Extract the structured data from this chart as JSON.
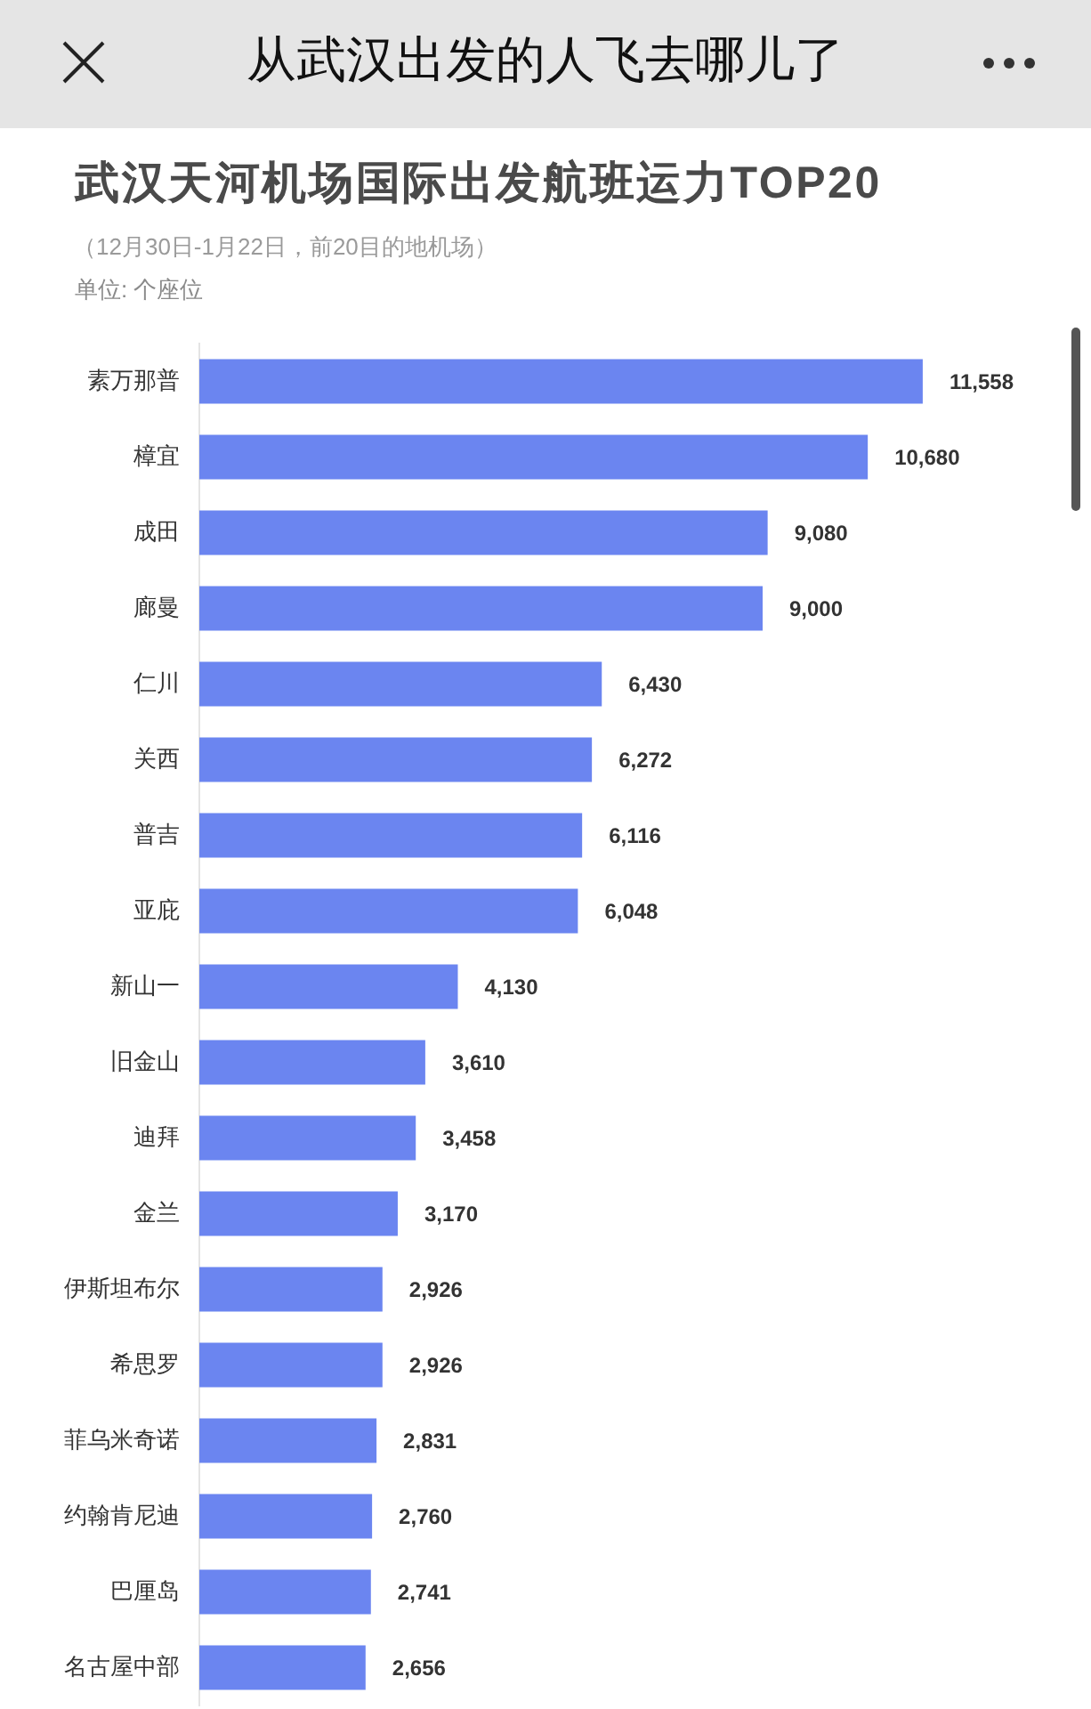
{
  "chart_data": {
    "type": "bar",
    "orientation": "horizontal",
    "title": "武汉天河机场国际出发航班运力TOP20",
    "subtitle": "（12月30日-1月22日，前20目的地机场）",
    "annotations": [
      "从武汉出发的人飞去哪儿了",
      "单位: 个座位"
    ],
    "categories": [
      "素万那普",
      "樟宜",
      "成田",
      "廊曼",
      "仁川",
      "关西",
      "普吉",
      "亚庇",
      "新山一",
      "旧金山",
      "迪拜",
      "金兰",
      "伊斯坦布尔",
      "希思罗",
      "菲乌米奇诺",
      "约翰肯尼迪",
      "巴厘岛",
      "名古屋中部"
    ],
    "values": [
      11558,
      10680,
      9080,
      9000,
      6430,
      6272,
      6116,
      6048,
      4130,
      3610,
      3458,
      3170,
      2926,
      2926,
      2831,
      2760,
      2741,
      2656
    ],
    "value_labels": [
      "11,558",
      "10,680",
      "9,080",
      "9,000",
      "6,430",
      "6,272",
      "6,116",
      "6,048",
      "4,130",
      "3,610",
      "3,458",
      "3,170",
      "2,926",
      "2,926",
      "2,831",
      "2,760",
      "2,741",
      "2,656"
    ],
    "color": "#6b85f0",
    "tick_labels": "y"
  }
}
